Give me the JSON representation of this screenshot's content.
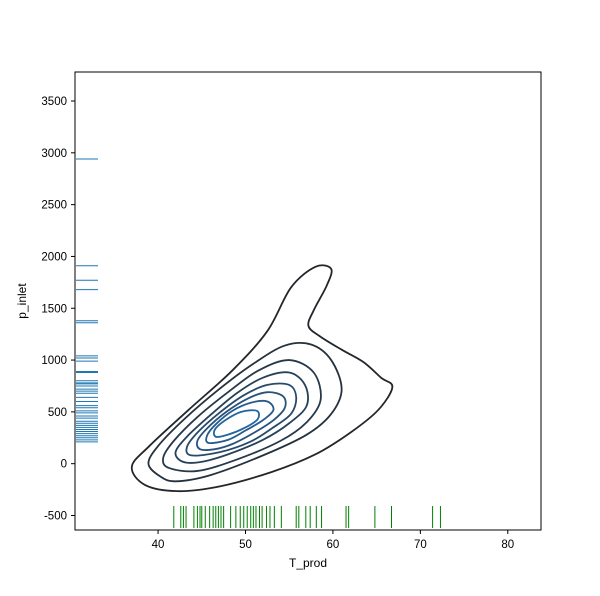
{
  "chart_data": {
    "type": "kde-contour",
    "title": "",
    "xlabel": "T_prod",
    "ylabel": "p_inlet",
    "xlim": [
      30.5,
      83.8
    ],
    "ylim": [
      -640,
      3780
    ],
    "x_ticks": [
      40,
      50,
      60,
      70,
      80
    ],
    "y_ticks": [
      -500,
      0,
      500,
      1000,
      1500,
      2000,
      2500,
      3000,
      3500
    ],
    "grid": false,
    "legend": "none",
    "contour_center": {
      "x": 47.5,
      "y": 380
    },
    "contours": [
      {
        "level": 1,
        "color": "#23272b",
        "points": [
          [
            42.2,
            -265
          ],
          [
            38.5,
            -205
          ],
          [
            37.0,
            -30
          ],
          [
            39.0,
            170
          ],
          [
            43.5,
            520
          ],
          [
            48.5,
            900
          ],
          [
            52.5,
            1280
          ],
          [
            55.2,
            1700
          ],
          [
            58.0,
            1900
          ],
          [
            59.8,
            1880
          ],
          [
            59.3,
            1720
          ],
          [
            57.8,
            1480
          ],
          [
            57.2,
            1330
          ],
          [
            58.5,
            1230
          ],
          [
            61.0,
            1100
          ],
          [
            63.5,
            980
          ],
          [
            65.5,
            830
          ],
          [
            66.8,
            740
          ],
          [
            65.2,
            520
          ],
          [
            62.0,
            300
          ],
          [
            58.0,
            90
          ],
          [
            53.0,
            -80
          ],
          [
            47.0,
            -220
          ]
        ]
      },
      {
        "level": 2,
        "color": "#25313c",
        "points": [
          [
            40.2,
            -120
          ],
          [
            38.9,
            0
          ],
          [
            40.0,
            170
          ],
          [
            43.0,
            430
          ],
          [
            47.0,
            720
          ],
          [
            51.0,
            970
          ],
          [
            54.5,
            1140
          ],
          [
            57.5,
            1150
          ],
          [
            59.8,
            1000
          ],
          [
            61.0,
            720
          ],
          [
            59.8,
            480
          ],
          [
            57.0,
            280
          ],
          [
            52.0,
            80
          ],
          [
            46.0,
            -110
          ],
          [
            42.0,
            -170
          ]
        ]
      },
      {
        "level": 3,
        "color": "#26394b",
        "points": [
          [
            41.2,
            -40
          ],
          [
            40.6,
            60
          ],
          [
            41.8,
            220
          ],
          [
            44.5,
            450
          ],
          [
            48.0,
            690
          ],
          [
            51.5,
            900
          ],
          [
            55.0,
            1000
          ],
          [
            57.8,
            880
          ],
          [
            58.6,
            620
          ],
          [
            57.0,
            400
          ],
          [
            54.0,
            220
          ],
          [
            49.0,
            40
          ],
          [
            44.5,
            -70
          ]
        ]
      },
      {
        "level": 4,
        "color": "#27415a",
        "points": [
          [
            42.8,
            20
          ],
          [
            42.0,
            110
          ],
          [
            43.3,
            260
          ],
          [
            46.0,
            470
          ],
          [
            49.0,
            680
          ],
          [
            52.0,
            830
          ],
          [
            55.0,
            880
          ],
          [
            56.8,
            760
          ],
          [
            57.0,
            560
          ],
          [
            55.0,
            390
          ],
          [
            52.0,
            230
          ],
          [
            48.0,
            90
          ],
          [
            44.8,
            15
          ]
        ]
      },
      {
        "level": 5,
        "color": "#284a6a",
        "points": [
          [
            43.8,
            80
          ],
          [
            43.3,
            160
          ],
          [
            44.5,
            300
          ],
          [
            47.0,
            490
          ],
          [
            49.8,
            660
          ],
          [
            52.5,
            760
          ],
          [
            55.0,
            760
          ],
          [
            55.8,
            640
          ],
          [
            55.2,
            480
          ],
          [
            53.0,
            340
          ],
          [
            50.5,
            210
          ],
          [
            47.0,
            110
          ]
        ]
      },
      {
        "level": 6,
        "color": "#28527b",
        "points": [
          [
            44.8,
            140
          ],
          [
            44.5,
            220
          ],
          [
            45.6,
            340
          ],
          [
            47.8,
            500
          ],
          [
            50.3,
            630
          ],
          [
            52.5,
            690
          ],
          [
            54.3,
            650
          ],
          [
            54.5,
            540
          ],
          [
            53.2,
            420
          ],
          [
            51.0,
            300
          ],
          [
            48.5,
            190
          ],
          [
            46.5,
            140
          ]
        ]
      },
      {
        "level": 7,
        "color": "#265b8c",
        "points": [
          [
            45.8,
            200
          ],
          [
            45.6,
            270
          ],
          [
            46.6,
            380
          ],
          [
            48.5,
            510
          ],
          [
            50.7,
            590
          ],
          [
            52.5,
            600
          ],
          [
            53.2,
            520
          ],
          [
            52.0,
            420
          ],
          [
            50.0,
            320
          ],
          [
            48.0,
            230
          ]
        ]
      },
      {
        "level": 8,
        "color": "#22659f",
        "points": [
          [
            46.6,
            260
          ],
          [
            46.5,
            330
          ],
          [
            47.7,
            420
          ],
          [
            49.5,
            500
          ],
          [
            51.3,
            510
          ],
          [
            51.4,
            430
          ],
          [
            50.0,
            350
          ],
          [
            48.0,
            280
          ]
        ]
      }
    ],
    "rug_x": [
      41.8,
      42.6,
      42.9,
      43.2,
      44.1,
      44.5,
      44.8,
      45.0,
      45.4,
      45.9,
      46.3,
      46.6,
      46.9,
      47.2,
      47.5,
      48.3,
      48.9,
      49.4,
      49.8,
      50.2,
      50.6,
      50.9,
      51.2,
      51.6,
      51.9,
      52.4,
      52.8,
      53.3,
      54.1,
      55.8,
      56.1,
      56.9,
      57.4,
      58.1,
      58.7,
      61.5,
      61.8,
      64.8,
      66.7,
      71.4,
      72.3
    ],
    "rug_y": [
      210,
      230,
      250,
      270,
      290,
      310,
      330,
      350,
      370,
      390,
      410,
      440,
      460,
      490,
      510,
      540,
      560,
      600,
      640,
      680,
      700,
      720,
      750,
      770,
      780,
      800,
      880,
      890,
      990,
      1020,
      1040,
      1360,
      1380,
      1680,
      1770,
      1910,
      2940
    ],
    "rug_x_color": "#008000",
    "rug_y_color": "#1f77b4",
    "axes_color": "#000000"
  }
}
